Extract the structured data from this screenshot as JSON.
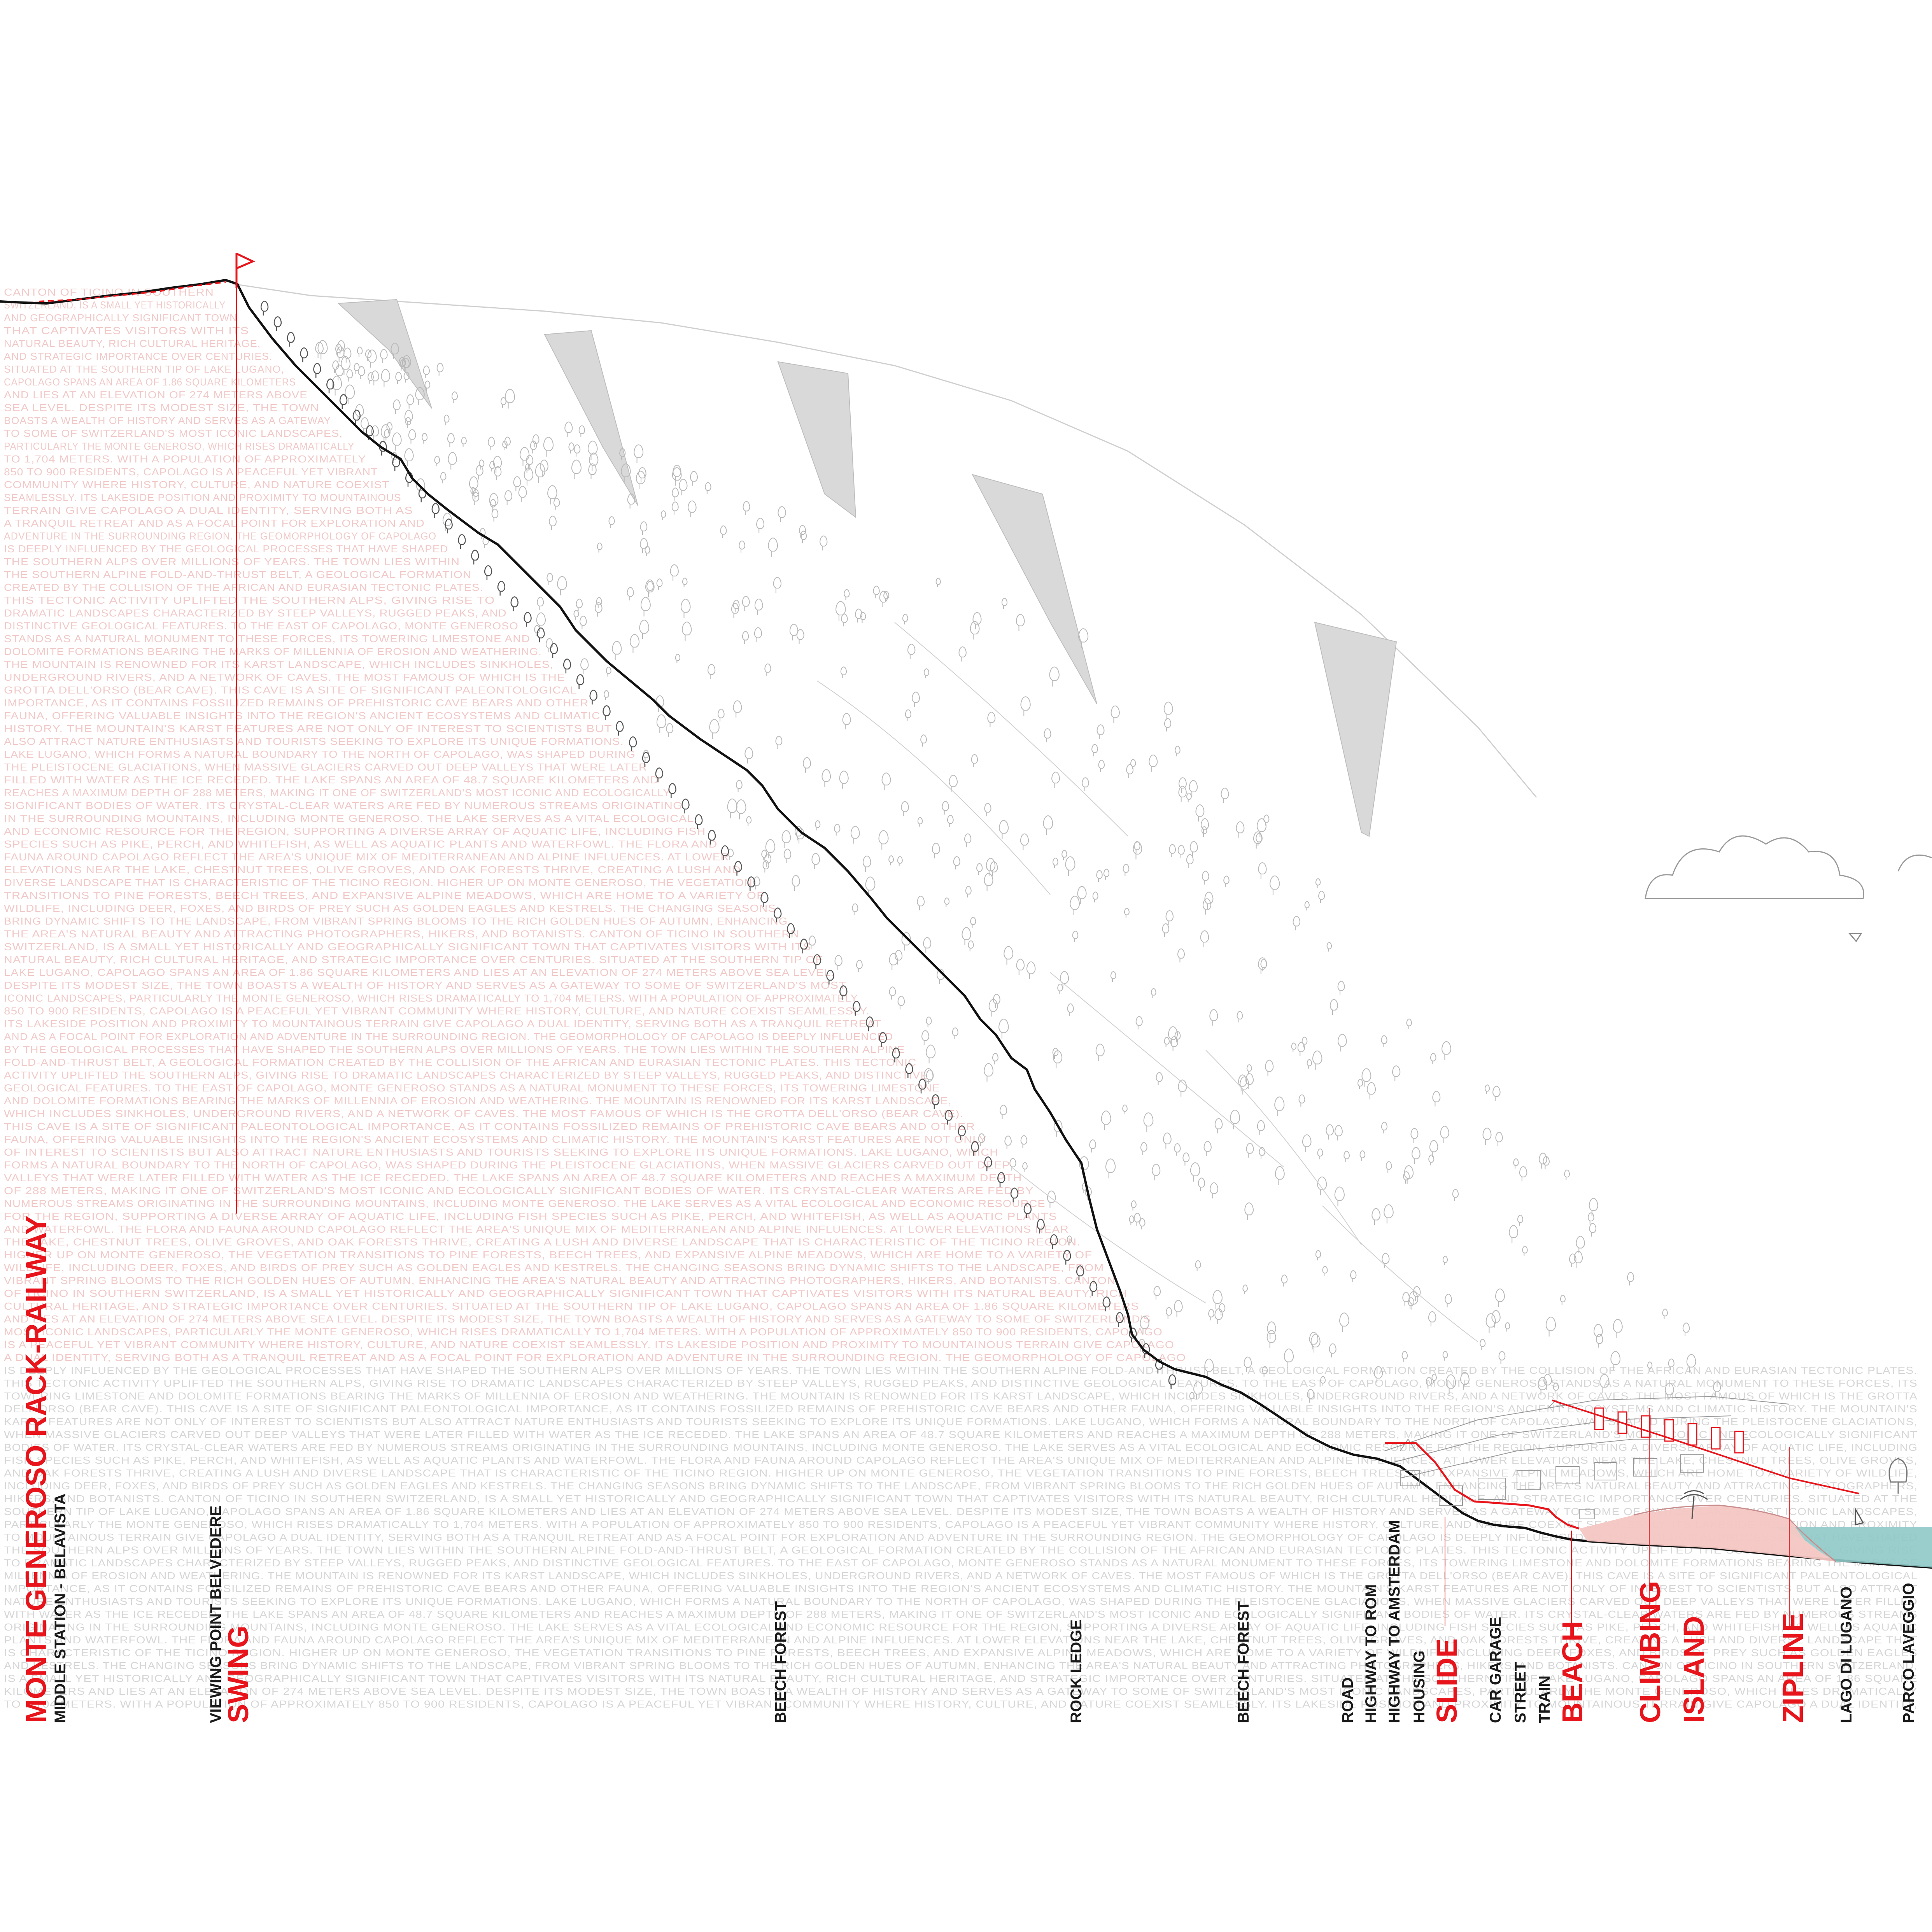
{
  "diagram": {
    "title": "MONTE GENEROSO RACK-RAILWAY",
    "subtitle": "MIDDLE STATION - BELAVISTA",
    "accent_color": "#e8141b",
    "text_color": "#1a1a1a",
    "water_color": "#8ec9c8",
    "beach_color": "#f4c7c3",
    "labels": [
      {
        "id": "viewing-point-belvedere",
        "text": "VIEWING POINT BELVEDERE",
        "style": "black"
      },
      {
        "id": "swing",
        "text": "SWING",
        "style": "red"
      },
      {
        "id": "beech-forest-1",
        "text": "BEECH FOREST",
        "style": "black"
      },
      {
        "id": "rock-ledge",
        "text": "ROCK LEDGE",
        "style": "black"
      },
      {
        "id": "beech-forest-2",
        "text": "BEECH FOREST",
        "style": "black"
      },
      {
        "id": "road",
        "text": "ROAD",
        "style": "black"
      },
      {
        "id": "highway-to-rom",
        "text": "HIGHWAY TO ROM",
        "style": "black"
      },
      {
        "id": "highway-to-amsterdam",
        "text": "HIGHWAY TO AMSTERDAM",
        "style": "black"
      },
      {
        "id": "housing",
        "text": "HOUSING",
        "style": "black"
      },
      {
        "id": "slide",
        "text": "SLIDE",
        "style": "red"
      },
      {
        "id": "car-garage",
        "text": "CAR GARAGE",
        "style": "black"
      },
      {
        "id": "street",
        "text": "STREET",
        "style": "black"
      },
      {
        "id": "train",
        "text": "TRAIN",
        "style": "black"
      },
      {
        "id": "beach",
        "text": "BEACH",
        "style": "red"
      },
      {
        "id": "climbing",
        "text": "CLIMBING",
        "style": "red"
      },
      {
        "id": "island",
        "text": "ISLAND",
        "style": "red"
      },
      {
        "id": "zipline",
        "text": "ZIPLINE",
        "style": "red"
      },
      {
        "id": "lago-di-lugano",
        "text": "LAGO DI LUGANO",
        "style": "black"
      },
      {
        "id": "parco-laveggio",
        "text": "PARCO LAVEGGIO",
        "style": "black"
      }
    ],
    "background_text": "CANTON OF TICINO IN SOUTHERN SWITZERLAND, IS A SMALL YET HISTORICALLY AND GEOGRAPHICALLY SIGNIFICANT TOWN THAT CAPTIVATES VISITORS WITH ITS NATURAL BEAUTY, RICH CULTURAL HERITAGE, AND STRATEGIC IMPORTANCE OVER CENTURIES. SITUATED AT THE SOUTHERN TIP OF LAKE LUGANO, CAPOLAGO SPANS AN AREA OF 1.86 SQUARE KILOMETERS AND LIES AT AN ELEVATION OF 274 METERS ABOVE SEA LEVEL. DESPITE ITS MODEST SIZE, THE TOWN BOASTS A WEALTH OF HISTORY AND SERVES AS A GATEWAY TO SOME OF SWITZERLAND'S MOST ICONIC LANDSCAPES, PARTICULARLY THE MONTE GENEROSO, WHICH RISES DRAMATICALLY TO 1,704 METERS. WITH A POPULATION OF APPROXIMATELY 850 TO 900 RESIDENTS, CAPOLAGO IS A PEACEFUL YET VIBRANT COMMUNITY WHERE HISTORY, CULTURE, AND NATURE COEXIST SEAMLESSLY. ITS LAKESIDE POSITION AND PROXIMITY TO MOUNTAINOUS TERRAIN GIVE CAPOLAGO A DUAL IDENTITY, SERVING BOTH AS A TRANQUIL RETREAT AND AS A FOCAL POINT FOR EXPLORATION AND ADVENTURE IN THE SURROUNDING REGION. THE GEOMORPHOLOGY OF CAPOLAGO IS DEEPLY INFLUENCED BY THE GEOLOGICAL PROCESSES THAT HAVE SHAPED THE SOUTHERN ALPS OVER MILLIONS OF YEARS. THE TOWN LIES WITHIN THE SOUTHERN ALPINE FOLD-AND-THRUST BELT, A GEOLOGICAL FORMATION CREATED BY THE COLLISION OF THE AFRICAN AND EURASIAN TECTONIC PLATES. THIS TECTONIC ACTIVITY UPLIFTED THE SOUTHERN ALPS, GIVING RISE TO DRAMATIC LANDSCAPES CHARACTERIZED BY STEEP VALLEYS, RUGGED PEAKS, AND DISTINCTIVE GEOLOGICAL FEATURES. TO THE EAST OF CAPOLAGO, MONTE GENEROSO STANDS AS A NATURAL MONUMENT TO THESE FORCES, ITS TOWERING LIMESTONE AND DOLOMITE FORMATIONS BEARING THE MARKS OF MILLENNIA OF EROSION AND WEATHERING. THE MOUNTAIN IS RENOWNED FOR ITS KARST LANDSCAPE, WHICH INCLUDES SINKHOLES, UNDERGROUND RIVERS, AND A NETWORK OF CAVES. THE MOST FAMOUS OF WHICH IS THE GROTTA DELL'ORSO (BEAR CAVE). THIS CAVE IS A SITE OF SIGNIFICANT PALEONTOLOGICAL IMPORTANCE, AS IT CONTAINS FOSSILIZED REMAINS OF PREHISTORIC CAVE BEARS AND OTHER FAUNA, OFFERING VALUABLE INSIGHTS INTO THE REGION'S ANCIENT ECOSYSTEMS AND CLIMATIC HISTORY. THE MOUNTAIN'S KARST FEATURES ARE NOT ONLY OF INTEREST TO SCIENTISTS BUT ALSO ATTRACT NATURE ENTHUSIASTS AND TOURISTS SEEKING TO EXPLORE ITS UNIQUE FORMATIONS. LAKE LUGANO, WHICH FORMS A NATURAL BOUNDARY TO THE NORTH OF CAPOLAGO, WAS SHAPED DURING THE PLEISTOCENE GLACIATIONS, WHEN MASSIVE GLACIERS CARVED OUT DEEP VALLEYS THAT WERE LATER FILLED WITH WATER AS THE ICE RECEDED. THE LAKE SPANS AN AREA OF 48.7 SQUARE KILOMETERS AND REACHES A MAXIMUM DEPTH OF 288 METERS, MAKING IT ONE OF SWITZERLAND'S MOST ICONIC AND ECOLOGICALLY SIGNIFICANT BODIES OF WATER. ITS CRYSTAL-CLEAR WATERS ARE FED BY NUMEROUS STREAMS ORIGINATING IN THE SURROUNDING MOUNTAINS, INCLUDING MONTE GENEROSO. THE LAKE SERVES AS A VITAL ECOLOGICAL AND ECONOMIC RESOURCE FOR THE REGION, SUPPORTING A DIVERSE ARRAY OF AQUATIC LIFE, INCLUDING FISH SPECIES SUCH AS PIKE, PERCH, AND WHITEFISH, AS WELL AS AQUATIC PLANTS AND WATERFOWL. THE FLORA AND FAUNA AROUND CAPOLAGO REFLECT THE AREA'S UNIQUE MIX OF MEDITERRANEAN AND ALPINE INFLUENCES. AT LOWER ELEVATIONS NEAR THE LAKE, CHESTNUT TREES, OLIVE GROVES, AND OAK FORESTS THRIVE, CREATING A LUSH AND DIVERSE LANDSCAPE THAT IS CHARACTERISTIC OF THE TICINO REGION. HIGHER UP ON MONTE GENEROSO, THE VEGETATION TRANSITIONS TO PINE FORESTS, BEECH TREES, AND EXPANSIVE ALPINE MEADOWS, WHICH ARE HOME TO A VARIETY OF WILDLIFE, INCLUDING DEER, FOXES, AND BIRDS OF PREY SUCH AS GOLDEN EAGLES AND KESTRELS. THE CHANGING SEASONS BRING DYNAMIC SHIFTS TO THE LANDSCAPE, FROM VIBRANT SPRING BLOOMS TO THE RICH GOLDEN HUES OF AUTUMN, ENHANCING THE AREA'S NATURAL BEAUTY AND ATTRACTING PHOTOGRAPHERS, HIKERS, AND BOTANISTS."
  }
}
